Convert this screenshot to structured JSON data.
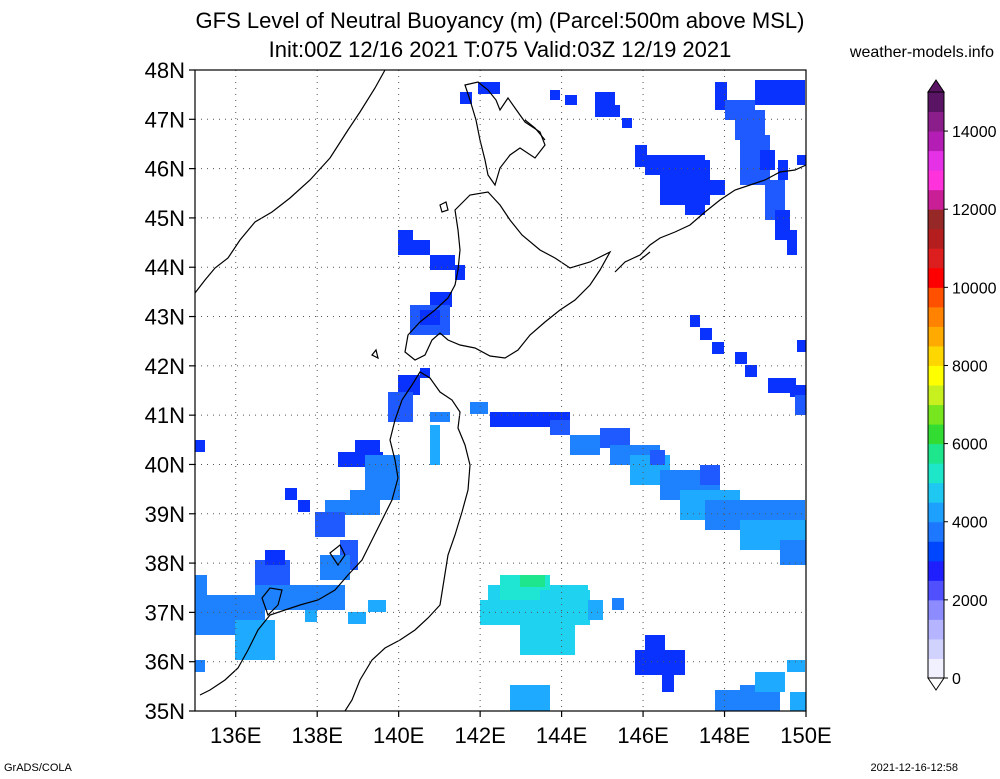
{
  "header": {
    "title_line1": "GFS Level of Neutral Buoyancy (m) (Parcel:500m above MSL)",
    "title_line2": "Init:00Z 12/16 2021 T:075 Valid:03Z 12/19 2021",
    "brand": "weather-models.info"
  },
  "map": {
    "lat_labels": [
      "48N",
      "47N",
      "46N",
      "45N",
      "44N",
      "43N",
      "42N",
      "41N",
      "40N",
      "39N",
      "38N",
      "37N",
      "36N",
      "35N"
    ],
    "lon_labels": [
      "136E",
      "138E",
      "140E",
      "142E",
      "144E",
      "146E",
      "148E",
      "150E"
    ],
    "lat_range": [
      35,
      48
    ],
    "lon_range": [
      135,
      150
    ],
    "grid": true
  },
  "colorbar": {
    "labels": [
      "14000",
      "12000",
      "10000",
      "8000",
      "6000",
      "4000",
      "2000",
      "0"
    ],
    "values": [
      14000,
      12000,
      10000,
      8000,
      6000,
      4000,
      2000,
      0
    ],
    "range": [
      0,
      15000
    ],
    "colors": [
      "#f0f0ff",
      "#d2d2ff",
      "#b4b4ff",
      "#8c8cff",
      "#5050ff",
      "#1e1eff",
      "#0046ff",
      "#1e78ff",
      "#1ea0ff",
      "#1ec8f0",
      "#1ee6c8",
      "#1ee68c",
      "#32dc32",
      "#78e61e",
      "#c8f01e",
      "#ffff00",
      "#ffd700",
      "#ffaa00",
      "#ff8200",
      "#ff5000",
      "#ff0000",
      "#dc1e1e",
      "#b41e1e",
      "#962828",
      "#c81e96",
      "#ff32dc",
      "#e632e6",
      "#b41eb4",
      "#8c1e8c",
      "#5a1464"
    ]
  },
  "footer": {
    "left": "GrADS/COLA",
    "right": "2021-12-16-12:58"
  }
}
